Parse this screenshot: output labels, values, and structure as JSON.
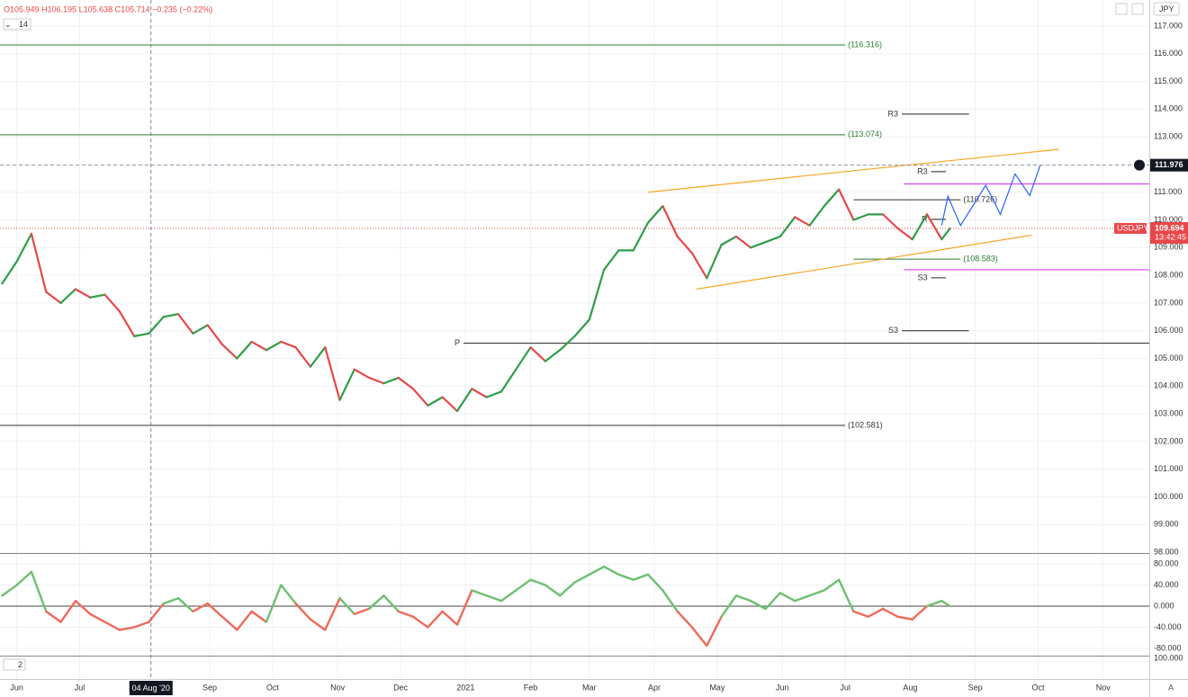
{
  "toolbar": {
    "ohlc": "O105.949 H106.195 L105.638 C105.714 −0.235 (−0.22%)",
    "interval": "14",
    "currency": "JPY",
    "scale_mode": "A"
  },
  "chart_data": [
    {
      "type": "line",
      "symbol": "USDJPY",
      "last_price": 109.694,
      "last_price_label": "109.694",
      "countdown": "13:42:45",
      "up_color": "#2e9e48",
      "down_color": "#e8474a",
      "grid": true,
      "xlim": [
        -8,
        540
      ],
      "xticks": [
        {
          "value": 0,
          "label": "Jun"
        },
        {
          "value": 30,
          "label": "Jul"
        },
        {
          "value": 92,
          "label": "Sep"
        },
        {
          "value": 122,
          "label": "Oct"
        },
        {
          "value": 153,
          "label": "Nov"
        },
        {
          "value": 183,
          "label": "Dec"
        },
        {
          "value": 214,
          "label": "2021"
        },
        {
          "value": 245,
          "label": "Feb"
        },
        {
          "value": 273,
          "label": "Mar"
        },
        {
          "value": 304,
          "label": "Apr"
        },
        {
          "value": 334,
          "label": "May"
        },
        {
          "value": 365,
          "label": "Jun"
        },
        {
          "value": 395,
          "label": "Jul"
        },
        {
          "value": 426,
          "label": "Aug"
        },
        {
          "value": 457,
          "label": "Sep"
        },
        {
          "value": 487,
          "label": "Oct"
        },
        {
          "value": 518,
          "label": "Nov"
        }
      ],
      "crosshair": {
        "x": {
          "value": 64,
          "label": "04 Aug '20"
        },
        "y": {
          "value": 111.976,
          "label": "111.976"
        }
      },
      "ylim": [
        97.97,
        117.94
      ],
      "yticks": [
        {
          "value": 98,
          "label": "98.000"
        },
        {
          "value": 99,
          "label": "99.000"
        },
        {
          "value": 100,
          "label": "100.000"
        },
        {
          "value": 101,
          "label": "101.000"
        },
        {
          "value": 102,
          "label": "102.000"
        },
        {
          "value": 103,
          "label": "103.000"
        },
        {
          "value": 104,
          "label": "104.000"
        },
        {
          "value": 105,
          "label": "105.000"
        },
        {
          "value": 106,
          "label": "106.000"
        },
        {
          "value": 107,
          "label": "107.000"
        },
        {
          "value": 108,
          "label": "108.000"
        },
        {
          "value": 109,
          "label": "109.000"
        },
        {
          "value": 110,
          "label": "110.000"
        },
        {
          "value": 111,
          "label": "111.000"
        },
        {
          "value": 112,
          "label": "112.000"
        },
        {
          "value": 113,
          "label": "113.000"
        },
        {
          "value": 114,
          "label": "114.000"
        },
        {
          "value": 115,
          "label": "115.000"
        },
        {
          "value": 116,
          "label": "116.000"
        },
        {
          "value": 117,
          "label": "117.000"
        }
      ],
      "x": [
        -7,
        0,
        7,
        14,
        21,
        28,
        35,
        42,
        49,
        56,
        63,
        70,
        77,
        84,
        91,
        98,
        105,
        112,
        119,
        126,
        133,
        140,
        147,
        154,
        161,
        168,
        175,
        182,
        189,
        196,
        203,
        210,
        217,
        224,
        231,
        238,
        245,
        252,
        259,
        266,
        273,
        280,
        287,
        294,
        301,
        308,
        315,
        322,
        329,
        336,
        343,
        350,
        357,
        364,
        371,
        378,
        385,
        392,
        399,
        406,
        413,
        420,
        427,
        434,
        441,
        445
      ],
      "values": [
        107.7,
        108.5,
        109.5,
        107.4,
        107.0,
        107.5,
        107.2,
        107.3,
        106.7,
        105.8,
        105.9,
        106.5,
        106.6,
        105.9,
        106.2,
        105.5,
        105.0,
        105.6,
        105.3,
        105.6,
        105.4,
        104.7,
        105.4,
        103.5,
        104.6,
        104.3,
        104.1,
        104.3,
        103.9,
        103.3,
        103.6,
        103.1,
        103.9,
        103.6,
        103.8,
        104.6,
        105.4,
        104.9,
        105.3,
        105.8,
        106.4,
        108.2,
        108.9,
        108.9,
        109.9,
        110.5,
        109.4,
        108.8,
        107.9,
        109.1,
        109.4,
        109.0,
        109.2,
        109.4,
        110.1,
        109.8,
        110.5,
        111.1,
        110.0,
        110.2,
        110.2,
        109.7,
        109.3,
        110.2,
        109.3,
        109.694
      ],
      "levels": [
        {
          "value": 116.316,
          "label": "(116.316)",
          "color": "#2e7d32",
          "x": [
            -8,
            395
          ]
        },
        {
          "value": 113.074,
          "label": "(113.074)",
          "color": "#2e7d32",
          "x": [
            -8,
            395
          ]
        },
        {
          "value": 102.581,
          "label": "(102.581)",
          "color": "#333333",
          "x": [
            -8,
            395
          ]
        },
        {
          "value": 110.726,
          "label": "(110.726)",
          "color": "#333333",
          "x": [
            399,
            450
          ]
        },
        {
          "value": 108.583,
          "label": "(108.583)",
          "color": "#2e7d32",
          "x": [
            399,
            450
          ]
        }
      ],
      "pivots": [
        {
          "value": 113.82,
          "label": "R3",
          "x": [
            422,
            454
          ]
        },
        {
          "value": 111.74,
          "label": "R3",
          "x": [
            436,
            443
          ]
        },
        {
          "value": 110.02,
          "label": "R",
          "x": [
            436,
            443
          ]
        },
        {
          "value": 107.91,
          "label": "S3",
          "x": [
            436,
            443
          ]
        },
        {
          "value": 106.0,
          "label": "S3",
          "x": [
            422,
            454
          ]
        },
        {
          "value": 105.55,
          "label": "P",
          "x": [
            213,
            540
          ]
        }
      ],
      "bands": {
        "color": "#e040fb",
        "values": [
          111.3,
          108.2
        ],
        "x": [
          423,
          540
        ]
      },
      "channel": {
        "color": "#f5a623",
        "lines": [
          {
            "x": [
              301,
              497
            ],
            "values": [
              111.0,
              112.55
            ]
          },
          {
            "x": [
              324,
              484
            ],
            "values": [
              107.5,
              109.45
            ]
          }
        ]
      },
      "projection": {
        "color": "#2962ff",
        "x": [
          441,
          444,
          450,
          462,
          469,
          476,
          483,
          488
        ],
        "values": [
          109.8,
          110.85,
          109.8,
          111.25,
          110.2,
          111.66,
          110.88,
          111.98
        ]
      }
    },
    {
      "type": "oscillator",
      "up_color": "#6cc070",
      "down_color": "#ef6a5a",
      "ylim": [
        -93.8,
        97.2
      ],
      "yticks": [
        {
          "value": 80,
          "label": "80.000"
        },
        {
          "value": 40,
          "label": "40.000"
        },
        {
          "value": 0,
          "label": "0.000"
        },
        {
          "value": -40,
          "label": "-40.000"
        },
        {
          "value": -80,
          "label": "-80.000"
        }
      ],
      "x": [
        -7,
        0,
        7,
        14,
        21,
        28,
        35,
        42,
        49,
        56,
        63,
        70,
        77,
        84,
        91,
        98,
        105,
        112,
        119,
        126,
        133,
        140,
        147,
        154,
        161,
        168,
        175,
        182,
        189,
        196,
        203,
        210,
        217,
        224,
        231,
        238,
        245,
        252,
        259,
        266,
        273,
        280,
        287,
        294,
        301,
        308,
        315,
        322,
        329,
        336,
        343,
        350,
        357,
        364,
        371,
        378,
        385,
        392,
        399,
        406,
        413,
        420,
        427,
        434,
        441,
        445
      ],
      "values": [
        20,
        40,
        65,
        -10,
        -30,
        10,
        -15,
        -30,
        -45,
        -40,
        -30,
        5,
        15,
        -10,
        5,
        -20,
        -45,
        -10,
        -30,
        40,
        5,
        -25,
        -45,
        15,
        -15,
        -5,
        20,
        -10,
        -20,
        -40,
        -10,
        -35,
        30,
        20,
        10,
        30,
        50,
        40,
        20,
        45,
        60,
        75,
        60,
        50,
        60,
        30,
        -10,
        -40,
        -75,
        -20,
        20,
        10,
        -5,
        25,
        10,
        20,
        30,
        50,
        -10,
        -20,
        -5,
        -20,
        -25,
        0,
        10,
        0
      ]
    },
    {
      "type": "indicator",
      "label": "2",
      "yticks": [
        {
          "value": 100,
          "label": "100.000"
        }
      ]
    }
  ]
}
